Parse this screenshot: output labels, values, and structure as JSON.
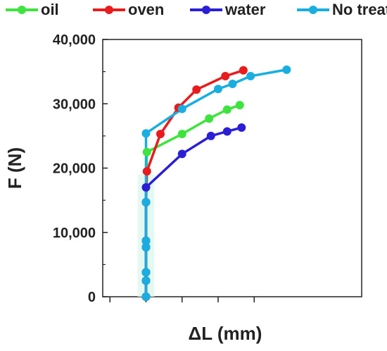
{
  "chart_data": {
    "type": "line",
    "xlabel": "ΔL (mm)",
    "ylabel": "F (N)",
    "ylim": [
      0,
      40000
    ],
    "xlim": [
      -2.4,
      6
    ],
    "yticks": [
      0,
      10000,
      20000,
      30000,
      40000
    ],
    "ytick_labels": [
      "0",
      "10,000",
      "20,000",
      "30,000",
      "40,000"
    ],
    "xticks": [
      -2,
      0,
      2,
      4,
      6
    ],
    "grid": false,
    "legend_position": "top",
    "series": [
      {
        "name": "oil",
        "color": "#3ee33e",
        "x": [
          0,
          0,
          0,
          0,
          0,
          0,
          0.05,
          2.0,
          3.5,
          4.5,
          5.2
        ],
        "y": [
          0,
          2500,
          3800,
          7700,
          8700,
          14700,
          22500,
          25300,
          27700,
          29100,
          29800
        ]
      },
      {
        "name": "oven",
        "color": "#e81c1c",
        "x": [
          0,
          0,
          0,
          0,
          0,
          0,
          0.05,
          0.8,
          1.8,
          2.8,
          4.4,
          5.4
        ],
        "y": [
          0,
          2500,
          3800,
          7700,
          8700,
          14700,
          19500,
          25300,
          29400,
          32200,
          34300,
          35200
        ]
      },
      {
        "name": "water",
        "color": "#2b1fd6",
        "x": [
          0,
          0,
          0,
          0,
          0,
          0,
          0,
          2.0,
          3.6,
          4.5,
          5.3
        ],
        "y": [
          0,
          2500,
          3800,
          7700,
          8700,
          14700,
          17000,
          22200,
          25000,
          25700,
          26300
        ]
      },
      {
        "name": "No treat.",
        "color": "#1aaee0",
        "x": [
          0,
          0,
          0,
          0,
          0,
          0,
          0,
          2.0,
          4.0,
          4.8,
          5.8,
          7.8
        ],
        "y": [
          0,
          2500,
          3800,
          7700,
          8700,
          14700,
          25400,
          29200,
          32300,
          33100,
          34300,
          35300
        ]
      }
    ]
  }
}
